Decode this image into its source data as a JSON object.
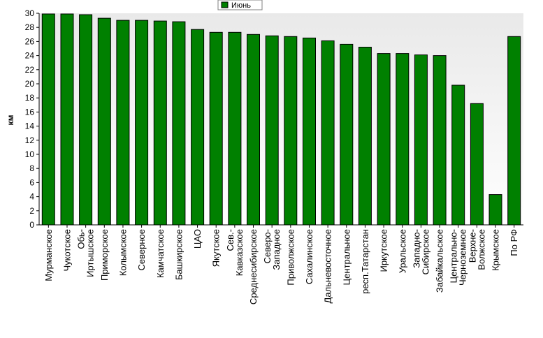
{
  "chart_data": {
    "type": "bar",
    "ylabel": "км",
    "ylim": [
      0,
      30
    ],
    "yticks": [
      0,
      2,
      4,
      6,
      8,
      10,
      12,
      14,
      16,
      18,
      20,
      22,
      24,
      26,
      28,
      30
    ],
    "grid": false,
    "legend_position": "top-center",
    "categories": [
      [
        "Мурманское"
      ],
      [
        "Чукотское"
      ],
      [
        "Обь-",
        "Иртышское"
      ],
      [
        "Приморское"
      ],
      [
        "Колымское"
      ],
      [
        "Северное"
      ],
      [
        "Камчатское"
      ],
      [
        "Башкирское"
      ],
      [
        "ЦАО"
      ],
      [
        "Якутское"
      ],
      [
        "Сев.-",
        "Кавказское"
      ],
      [
        "Среднесибирское"
      ],
      [
        "Северо-",
        "Западное"
      ],
      [
        "Приволжское"
      ],
      [
        "Сахалинское"
      ],
      [
        "Дальневосточное"
      ],
      [
        "Центральное"
      ],
      [
        "респ.Татарстан"
      ],
      [
        "Иркутское"
      ],
      [
        "Уральское"
      ],
      [
        "Западно-",
        "Сибирское"
      ],
      [
        "Забайкальское"
      ],
      [
        "Центрально-",
        "Черноземное"
      ],
      [
        "Верхне-",
        "Волжское"
      ],
      [
        "Крымское"
      ],
      [
        "По РФ"
      ]
    ],
    "series": [
      {
        "name": "Июнь",
        "color": "#008000",
        "values": [
          29.9,
          29.9,
          29.8,
          29.3,
          29.0,
          29.0,
          28.9,
          28.8,
          27.7,
          27.3,
          27.3,
          27.0,
          26.8,
          26.7,
          26.5,
          26.1,
          25.6,
          25.2,
          24.3,
          24.3,
          24.1,
          24.0,
          19.8,
          17.2,
          4.3,
          26.7
        ]
      }
    ]
  }
}
